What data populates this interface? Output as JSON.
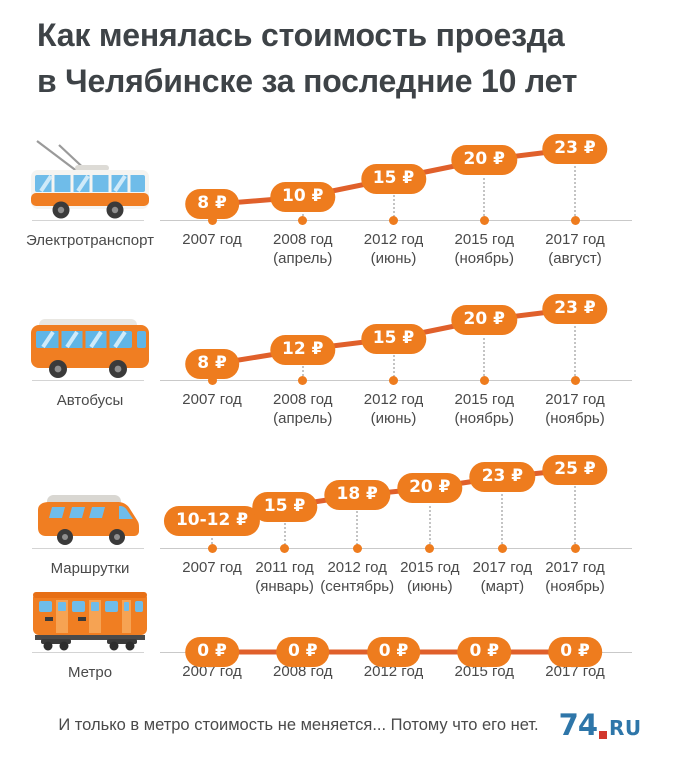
{
  "title": {
    "text": "Как менялась стоимость проезда в Челябинске за последние 10 лет",
    "lines": [
      "Как менялась стоимость проезда",
      "в Челябинске за последние 10 лет"
    ]
  },
  "footer": {
    "caption": "И только в метро стоимость не меняется... Потому что его нет.",
    "logo_prefix": "74",
    "logo_suffix": "RU"
  },
  "colors": {
    "badge": "#EE7C1E",
    "trend_line": "#E0602B",
    "title_text": "#3E4347",
    "label_text": "#4A4A4A",
    "baseline": "#C9C9C9",
    "stem": "#C4C4C4",
    "logo_blue": "#2E76A9",
    "logo_red": "#D2362C",
    "background": "#FFFFFF"
  },
  "chart_data": [
    {
      "type": "line",
      "title": "Электротранспорт",
      "icon": "trolleybus-icon",
      "unit": "₽",
      "legend_position": "none",
      "grid": false,
      "points": [
        {
          "price": "8 ₽",
          "value": 8,
          "year": "2007 год",
          "month": ""
        },
        {
          "price": "10 ₽",
          "value": 10,
          "year": "2008 год",
          "month": "(апрель)"
        },
        {
          "price": "15 ₽",
          "value": 15,
          "year": "2012 год",
          "month": "(июнь)"
        },
        {
          "price": "20 ₽",
          "value": 20,
          "year": "2015 год",
          "month": "(ноябрь)"
        },
        {
          "price": "23 ₽",
          "value": 23,
          "year": "2017 год",
          "month": "(август)"
        }
      ]
    },
    {
      "type": "line",
      "title": "Автобусы",
      "icon": "bus-icon",
      "unit": "₽",
      "legend_position": "none",
      "grid": false,
      "points": [
        {
          "price": "8 ₽",
          "value": 8,
          "year": "2007 год",
          "month": ""
        },
        {
          "price": "12 ₽",
          "value": 12,
          "year": "2008 год",
          "month": "(апрель)"
        },
        {
          "price": "15 ₽",
          "value": 15,
          "year": "2012 год",
          "month": "(июнь)"
        },
        {
          "price": "20 ₽",
          "value": 20,
          "year": "2015 год",
          "month": "(ноябрь)"
        },
        {
          "price": "23 ₽",
          "value": 23,
          "year": "2017 год",
          "month": "(ноябрь)"
        }
      ]
    },
    {
      "type": "line",
      "title": "Маршрутки",
      "icon": "minibus-icon",
      "unit": "₽",
      "legend_position": "none",
      "grid": false,
      "points": [
        {
          "price": "10-12 ₽",
          "value": 11,
          "year": "2007 год",
          "month": ""
        },
        {
          "price": "15 ₽",
          "value": 15,
          "year": "2011 год",
          "month": "(январь)"
        },
        {
          "price": "18 ₽",
          "value": 18,
          "year": "2012 год",
          "month": "(сентябрь)"
        },
        {
          "price": "20 ₽",
          "value": 20,
          "year": "2015 год",
          "month": "(июнь)"
        },
        {
          "price": "23 ₽",
          "value": 23,
          "year": "2017 год",
          "month": "(март)"
        },
        {
          "price": "25 ₽",
          "value": 25,
          "year": "2017 год",
          "month": "(ноябрь)"
        }
      ]
    },
    {
      "type": "line",
      "title": "Метро",
      "icon": "metro-icon",
      "unit": "₽",
      "legend_position": "none",
      "grid": false,
      "points": [
        {
          "price": "0 ₽",
          "value": 0,
          "year": "2007 год",
          "month": ""
        },
        {
          "price": "0 ₽",
          "value": 0,
          "year": "2008 год",
          "month": ""
        },
        {
          "price": "0 ₽",
          "value": 0,
          "year": "2012 год",
          "month": ""
        },
        {
          "price": "0 ₽",
          "value": 0,
          "year": "2015 год",
          "month": ""
        },
        {
          "price": "0 ₽",
          "value": 0,
          "year": "2017 год",
          "month": ""
        }
      ]
    }
  ]
}
